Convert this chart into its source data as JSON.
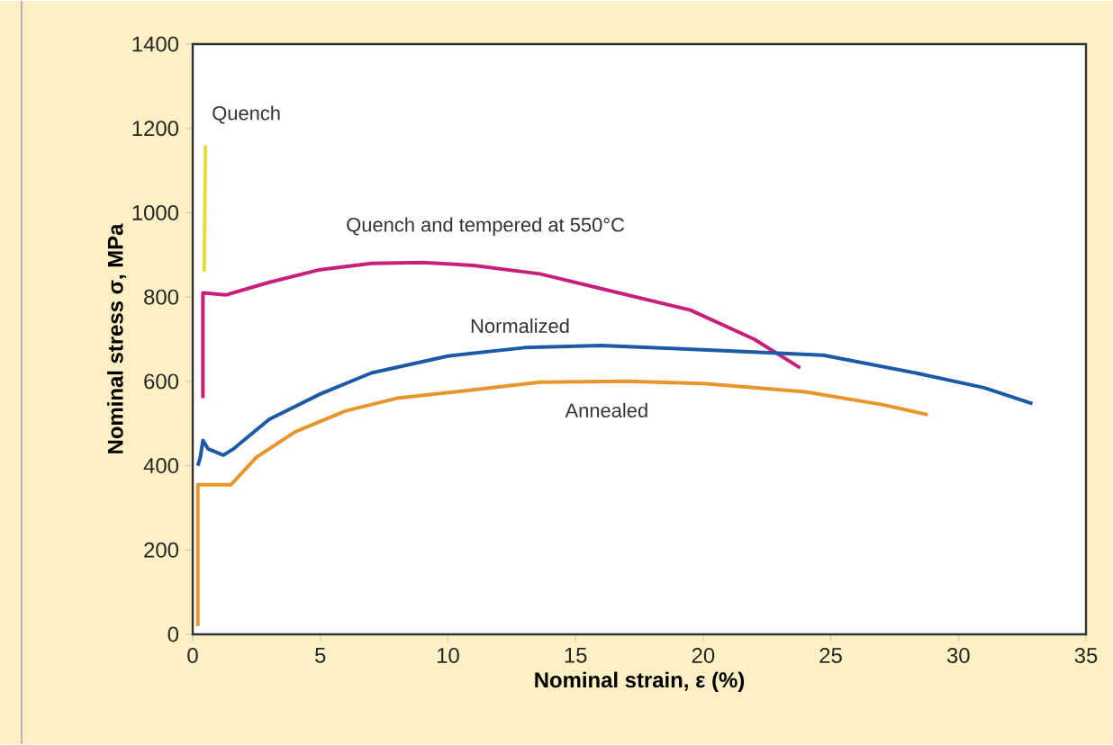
{
  "chart_data": {
    "type": "line",
    "xlabel": "Nominal strain, ε (%)",
    "ylabel": "Nominal stress σ, MPa",
    "xlim": [
      0,
      35
    ],
    "ylim": [
      0,
      1400
    ],
    "xticks": [
      0,
      5,
      10,
      15,
      20,
      25,
      30,
      35
    ],
    "yticks": [
      0,
      200,
      400,
      600,
      800,
      1000,
      1200,
      1400
    ],
    "grid": false,
    "marker": "none",
    "line_style": "solid",
    "series": [
      {
        "name": "Quench",
        "color": "#e6dc3a",
        "x": [
          0.45,
          0.5
        ],
        "values": [
          860,
          1160
        ]
      },
      {
        "name": "Quench and tempered at 550°C",
        "color": "#c8207a",
        "x": [
          0.4,
          0.4,
          1.3,
          3,
          5,
          7,
          9,
          11,
          13.6,
          16,
          19.5,
          22,
          23.8
        ],
        "values": [
          560,
          810,
          805,
          835,
          865,
          880,
          882,
          875,
          855,
          820,
          769,
          700,
          632
        ]
      },
      {
        "name": "Normalized",
        "color": "#1b5aa6",
        "x": [
          0.2,
          0.3,
          0.4,
          0.6,
          1.2,
          1.6,
          3,
          5,
          7,
          10,
          13,
          16,
          20,
          24.7,
          28.4,
          31,
          32.9
        ],
        "values": [
          400,
          420,
          460,
          440,
          425,
          440,
          510,
          570,
          620,
          660,
          680,
          685,
          675,
          662,
          619,
          585,
          547
        ]
      },
      {
        "name": "Annealed",
        "color": "#e8962a",
        "x": [
          0.2,
          0.2,
          1.5,
          2.5,
          4,
          6,
          8,
          11,
          13.6,
          17,
          20,
          24,
          27,
          28.8
        ],
        "values": [
          20,
          355,
          355,
          420,
          480,
          530,
          560,
          580,
          598,
          600,
          595,
          575,
          545,
          521
        ]
      }
    ]
  }
}
